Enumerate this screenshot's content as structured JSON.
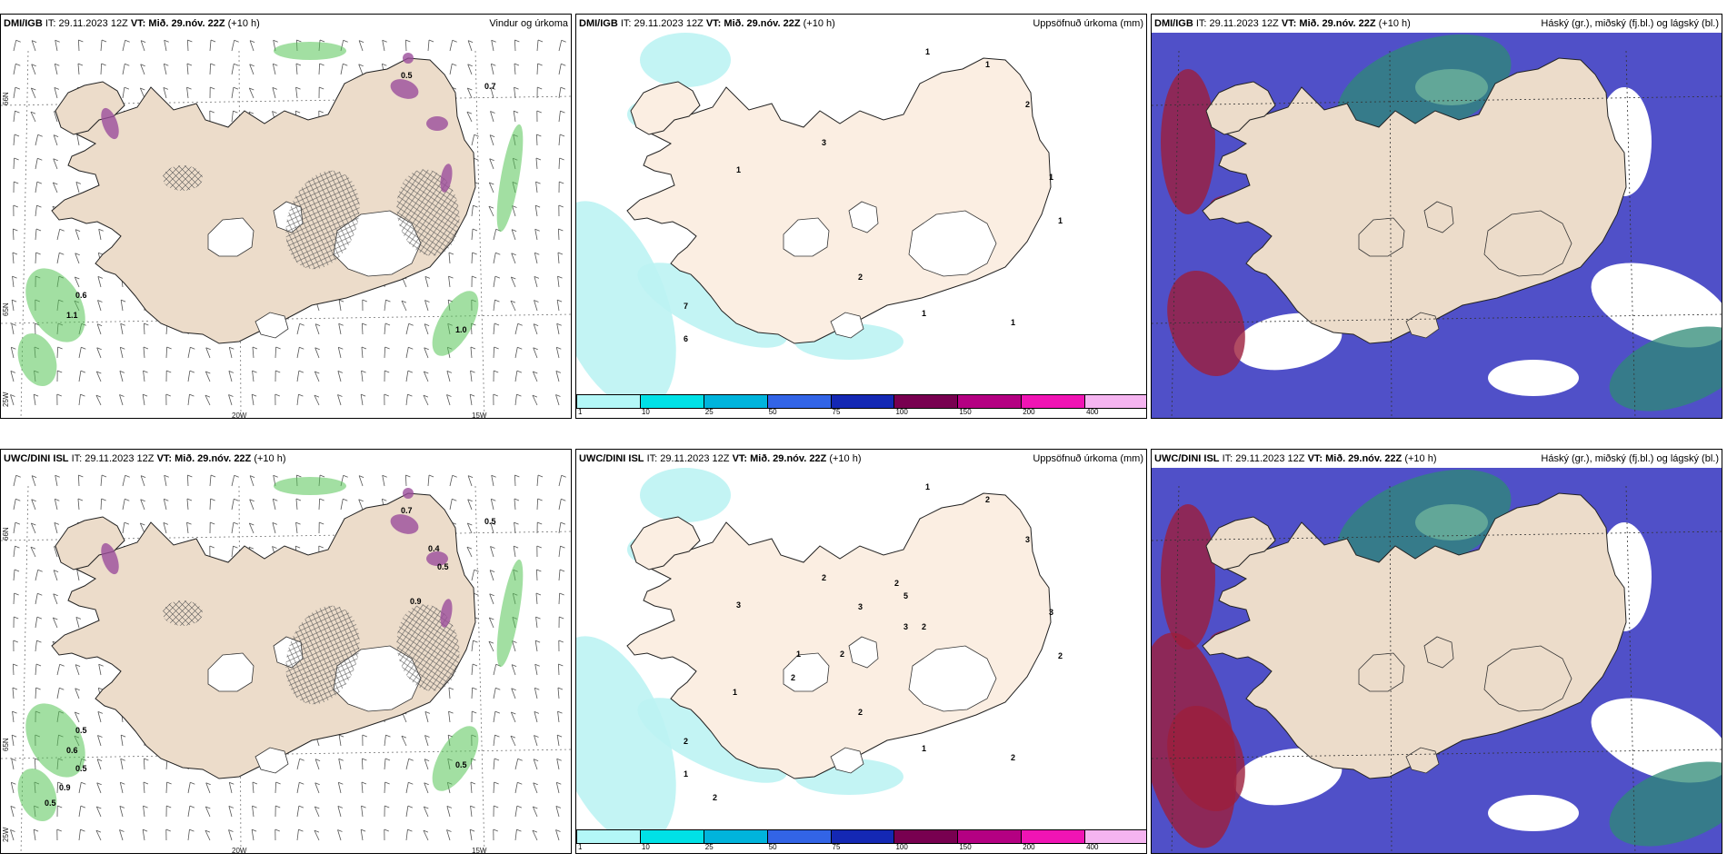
{
  "panels": [
    {
      "source": "DMI/IGB",
      "it_label": "IT:",
      "it_value": "29.11.2023 12Z",
      "vt_label": "VT:",
      "vt_value": "Mið. 29.nóv. 22Z",
      "lead": "(+10 h)",
      "title": "Vindur og úrkoma"
    },
    {
      "source": "DMI/IGB",
      "it_label": "IT:",
      "it_value": "29.11.2023 12Z",
      "vt_label": "VT:",
      "vt_value": "Mið. 29.nóv. 22Z",
      "lead": "(+10 h)",
      "title": "Uppsöfnuð úrkoma (mm)"
    },
    {
      "source": "DMI/IGB",
      "it_label": "IT:",
      "it_value": "29.11.2023 12Z",
      "vt_label": "VT:",
      "vt_value": "Mið. 29.nóv. 22Z",
      "lead": "(+10 h)",
      "title": "Háský (gr.), miðský (fj.bl.) og lágský (bl.)"
    },
    {
      "source": "UWC/DINI ISL",
      "it_label": "IT:",
      "it_value": "29.11.2023 12Z",
      "vt_label": "VT:",
      "vt_value": "Mið. 29.nóv. 22Z",
      "lead": "(+10 h)",
      "title": ""
    },
    {
      "source": "UWC/DINI ISL",
      "it_label": "IT:",
      "it_value": "29.11.2023 12Z",
      "vt_label": "VT:",
      "vt_value": "Mið. 29.nóv. 22Z",
      "lead": "(+10 h)",
      "title": "Uppsöfnuð úrkoma (mm)"
    },
    {
      "source": "UWC/DINI ISL",
      "it_label": "IT:",
      "it_value": "29.11.2023 12Z",
      "vt_label": "VT:",
      "vt_value": "Mið. 29.nóv. 22Z",
      "lead": "(+10 h)",
      "title": "Háský (gr.), miðský (fj.bl.) og lágský (bl.)"
    }
  ],
  "coords": {
    "lat66": "66N",
    "lat65": "65N",
    "lon20": "20W",
    "lon15": "15W",
    "lon25": "25W"
  },
  "legend": {
    "ticks": [
      "1",
      "10",
      "25",
      "50",
      "75",
      "100",
      "150",
      "200",
      "400"
    ],
    "colors": [
      "#b3f7f7",
      "#00e1e6",
      "#00b4dc",
      "#3264e6",
      "#1428b4",
      "#780050",
      "#b40082",
      "#f014b4",
      "#f5b4f0"
    ]
  },
  "colors": {
    "land": "#ecdcca",
    "land_precip": "#fbeee2",
    "precip_light": "#bdf3f3",
    "snow_green": "#56c456",
    "mauve": "#9b4e9b",
    "cloud_high": "#2d8a76",
    "cloud_mid": "#5050c8",
    "cloud_low": "#9c1e3c"
  },
  "labels": {
    "wind_top": [
      "0.5",
      "0.7",
      "1.0",
      "0.6",
      "1.1"
    ],
    "wind_bottom": [
      "0.7",
      "0.5",
      "0.5",
      "0.5",
      "0.6",
      "0.5",
      "0.4",
      "0.5",
      "0.9",
      "0.9",
      "0.5"
    ],
    "precip_top": [
      "1",
      "1",
      "2",
      "3",
      "1",
      "1",
      "1",
      "2",
      "1",
      "7",
      "6",
      "1"
    ],
    "precip_bottom": [
      "1",
      "2",
      "3",
      "2",
      "3",
      "3",
      "2",
      "2",
      "1",
      "2",
      "1",
      "2",
      "2",
      "5",
      "3",
      "3",
      "2",
      "2",
      "1",
      "2",
      "1",
      "2"
    ]
  }
}
